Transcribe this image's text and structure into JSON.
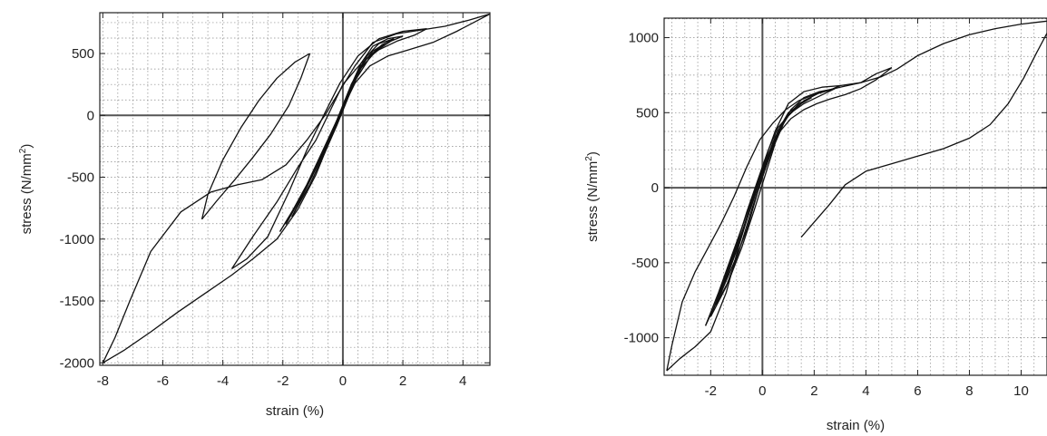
{
  "chart_data": [
    {
      "type": "line",
      "xlabel": "strain (%)",
      "ylabel": "stress (N/mm",
      "ylabel_sup": "2",
      "ylabel_end": ")",
      "xlim": [
        -8.1,
        4.9
      ],
      "ylim": [
        -2020,
        830
      ],
      "xticks": [
        -8,
        -6,
        -4,
        -2,
        0,
        2,
        4
      ],
      "yticks": [
        -2000,
        -1500,
        -1000,
        -500,
        0,
        500
      ],
      "xtick_labels": [
        "-8",
        "-6",
        "-4",
        "-2",
        "0",
        "2",
        "4"
      ],
      "ytick_labels": [
        "-2000",
        "-1500",
        "-1000",
        "-500",
        "0",
        "500"
      ],
      "grid": true,
      "series": [
        {
          "x": [
            -8.0,
            -7.3,
            -6.4,
            -5.5,
            -4.6,
            -3.7,
            -3.0,
            -2.2,
            -1.5,
            -0.9,
            -0.4,
            0.0,
            0.4,
            0.9,
            1.5,
            2.2,
            3.0,
            3.8,
            4.9
          ],
          "y": [
            -2000,
            -1900,
            -1750,
            -1590,
            -1440,
            -1290,
            -1160,
            -1000,
            -760,
            -480,
            -180,
            60,
            260,
            400,
            480,
            530,
            590,
            680,
            820
          ]
        },
        {
          "x": [
            4.9,
            4.2,
            3.4,
            2.6,
            1.8,
            1.0,
            0.4,
            -0.1,
            -0.6,
            -1.2,
            -1.9,
            -2.7,
            -3.5,
            -4.4,
            -5.4,
            -6.4,
            -7.1,
            -7.6,
            -8.0
          ],
          "y": [
            820,
            770,
            720,
            690,
            660,
            590,
            400,
            200,
            0,
            -200,
            -400,
            -520,
            -560,
            -620,
            -780,
            -1100,
            -1500,
            -1800,
            -2000
          ]
        },
        {
          "x": [
            -3.7,
            -3.0,
            -2.2,
            -1.5,
            -0.9,
            -0.4,
            0.0,
            0.6,
            1.2,
            1.8,
            2.4,
            2.8
          ],
          "y": [
            -1240,
            -980,
            -700,
            -420,
            -200,
            50,
            250,
            420,
            530,
            600,
            650,
            700
          ]
        },
        {
          "x": [
            2.8,
            2.0,
            1.2,
            0.5,
            -0.1,
            -0.6,
            -1.2,
            -1.8,
            -2.5,
            -3.2,
            -3.7
          ],
          "y": [
            700,
            680,
            620,
            480,
            260,
            20,
            -280,
            -620,
            -980,
            -1160,
            -1240
          ]
        },
        {
          "x": [
            -4.7,
            -4.2,
            -3.6,
            -3.0,
            -2.4,
            -1.8,
            -1.4,
            -1.1
          ],
          "y": [
            -840,
            -690,
            -520,
            -340,
            -150,
            80,
            300,
            500
          ]
        },
        {
          "x": [
            -1.1,
            -1.6,
            -2.2,
            -2.8,
            -3.4,
            -4.0,
            -4.5,
            -4.7
          ],
          "y": [
            500,
            430,
            300,
            120,
            -100,
            -360,
            -640,
            -840
          ]
        },
        {
          "x": [
            -2.1,
            -1.6,
            -1.1,
            -0.6,
            -0.2,
            0.2,
            0.6,
            1.1,
            1.6,
            2.0
          ],
          "y": [
            -940,
            -740,
            -520,
            -300,
            -80,
            160,
            380,
            520,
            600,
            640
          ]
        },
        {
          "x": [
            2.0,
            1.5,
            1.0,
            0.6,
            0.2,
            -0.2,
            -0.7,
            -1.2,
            -1.7,
            -2.1
          ],
          "y": [
            640,
            620,
            560,
            420,
            200,
            -40,
            -300,
            -560,
            -780,
            -940
          ]
        },
        {
          "x": [
            -1.9,
            -1.4,
            -0.9,
            -0.5,
            -0.1,
            0.3,
            0.8,
            1.3,
            1.7
          ],
          "y": [
            -880,
            -660,
            -420,
            -220,
            20,
            260,
            460,
            570,
            620
          ]
        },
        {
          "x": [
            1.7,
            1.2,
            0.8,
            0.4,
            0.0,
            -0.4,
            -0.9,
            -1.4,
            -1.9
          ],
          "y": [
            620,
            580,
            480,
            300,
            80,
            -160,
            -420,
            -660,
            -880
          ]
        },
        {
          "x": [
            -1.7,
            -1.2,
            -0.8,
            -0.4,
            0.0,
            0.4,
            0.9,
            1.4
          ],
          "y": [
            -820,
            -580,
            -380,
            -180,
            40,
            280,
            470,
            580
          ]
        },
        {
          "x": [
            1.4,
            1.0,
            0.6,
            0.2,
            -0.2,
            -0.6,
            -1.1,
            -1.7
          ],
          "y": [
            580,
            520,
            400,
            180,
            -60,
            -300,
            -560,
            -820
          ]
        }
      ]
    },
    {
      "type": "line",
      "xlabel": "strain (%)",
      "ylabel": "stress (N/mm",
      "ylabel_sup": "2",
      "ylabel_end": ")",
      "xlim": [
        -3.8,
        11.0
      ],
      "ylim": [
        -1250,
        1130
      ],
      "xticks": [
        -2,
        0,
        2,
        4,
        6,
        8,
        10
      ],
      "yticks": [
        -1000,
        -500,
        0,
        500,
        1000
      ],
      "xtick_labels": [
        "-2",
        "0",
        "2",
        "4",
        "6",
        "8",
        "10"
      ],
      "ytick_labels": [
        "-1000",
        "-500",
        "0",
        "500",
        "1000"
      ],
      "grid": true,
      "series": [
        {
          "x": [
            -3.7,
            -3.2,
            -2.6,
            -2.0,
            -1.4,
            -0.9,
            -0.4,
            0.0,
            0.5,
            1.0,
            1.6,
            2.3,
            3.0,
            3.8,
            4.6,
            5.2,
            6.0,
            7.0,
            8.0,
            9.0,
            10.0,
            11.0
          ],
          "y": [
            -1220,
            -1140,
            -1060,
            -960,
            -700,
            -380,
            -100,
            120,
            340,
            480,
            580,
            640,
            670,
            700,
            740,
            790,
            880,
            960,
            1020,
            1060,
            1090,
            1110
          ]
        },
        {
          "x": [
            -3.7,
            -3.5,
            -3.1,
            -2.6,
            -2.1,
            -1.6,
            -1.1,
            -0.6,
            -0.1,
            0.4,
            0.9,
            1.4,
            2.0,
            2.6,
            3.0
          ],
          "y": [
            -1220,
            -1050,
            -760,
            -560,
            -400,
            -240,
            -60,
            140,
            320,
            430,
            520,
            580,
            620,
            650,
            680
          ]
        },
        {
          "x": [
            -2.2,
            -1.7,
            -1.2,
            -0.7,
            -0.3,
            0.1,
            0.6,
            1.1,
            1.6,
            2.1,
            2.6,
            3.2,
            3.8,
            4.4,
            5.0
          ],
          "y": [
            -920,
            -700,
            -460,
            -220,
            -20,
            180,
            360,
            460,
            520,
            560,
            590,
            620,
            660,
            720,
            800
          ]
        },
        {
          "x": [
            5.0,
            4.4,
            3.8,
            3.0,
            2.3,
            1.6,
            1.0,
            0.5,
            0.0,
            -0.5,
            -1.0,
            -1.6,
            -2.2
          ],
          "y": [
            800,
            760,
            700,
            680,
            670,
            640,
            560,
            380,
            140,
            -140,
            -420,
            -700,
            -920
          ]
        },
        {
          "x": [
            -2.0,
            -1.5,
            -1.0,
            -0.6,
            -0.2,
            0.2,
            0.6,
            1.1,
            1.6,
            2.2,
            2.8
          ],
          "y": [
            -860,
            -620,
            -380,
            -160,
            40,
            240,
            400,
            500,
            560,
            610,
            660
          ]
        },
        {
          "x": [
            2.8,
            2.2,
            1.6,
            1.1,
            0.6,
            0.1,
            -0.4,
            -0.9,
            -1.4,
            -2.0
          ],
          "y": [
            660,
            640,
            600,
            520,
            360,
            120,
            -140,
            -420,
            -660,
            -860
          ]
        },
        {
          "x": [
            -1.8,
            -1.3,
            -0.8,
            -0.4,
            0.0,
            0.4,
            0.9,
            1.4,
            1.9
          ],
          "y": [
            -780,
            -540,
            -300,
            -100,
            100,
            300,
            460,
            550,
            600
          ]
        },
        {
          "x": [
            1.9,
            1.4,
            0.9,
            0.5,
            0.1,
            -0.3,
            -0.8,
            -1.3,
            -1.8
          ],
          "y": [
            600,
            560,
            460,
            300,
            80,
            -140,
            -400,
            -620,
            -780
          ]
        },
        {
          "x": [
            -1.6,
            -1.1,
            -0.7,
            -0.3,
            0.1,
            0.5,
            1.0,
            1.5
          ],
          "y": [
            -700,
            -460,
            -260,
            -60,
            140,
            340,
            480,
            560
          ]
        },
        {
          "x": [
            1.5,
            1.0,
            0.6,
            0.2,
            -0.2,
            -0.6,
            -1.1,
            -1.6
          ],
          "y": [
            560,
            500,
            380,
            180,
            -40,
            -280,
            -500,
            -700
          ]
        },
        {
          "x": [
            1.5,
            2.0,
            2.6,
            3.2,
            4.0,
            5.0,
            6.0,
            7.0,
            8.0,
            8.8,
            9.5,
            10.1,
            10.6,
            11.0
          ],
          "y": [
            -330,
            -230,
            -110,
            20,
            110,
            160,
            210,
            260,
            330,
            420,
            560,
            730,
            900,
            1030
          ]
        }
      ]
    }
  ]
}
